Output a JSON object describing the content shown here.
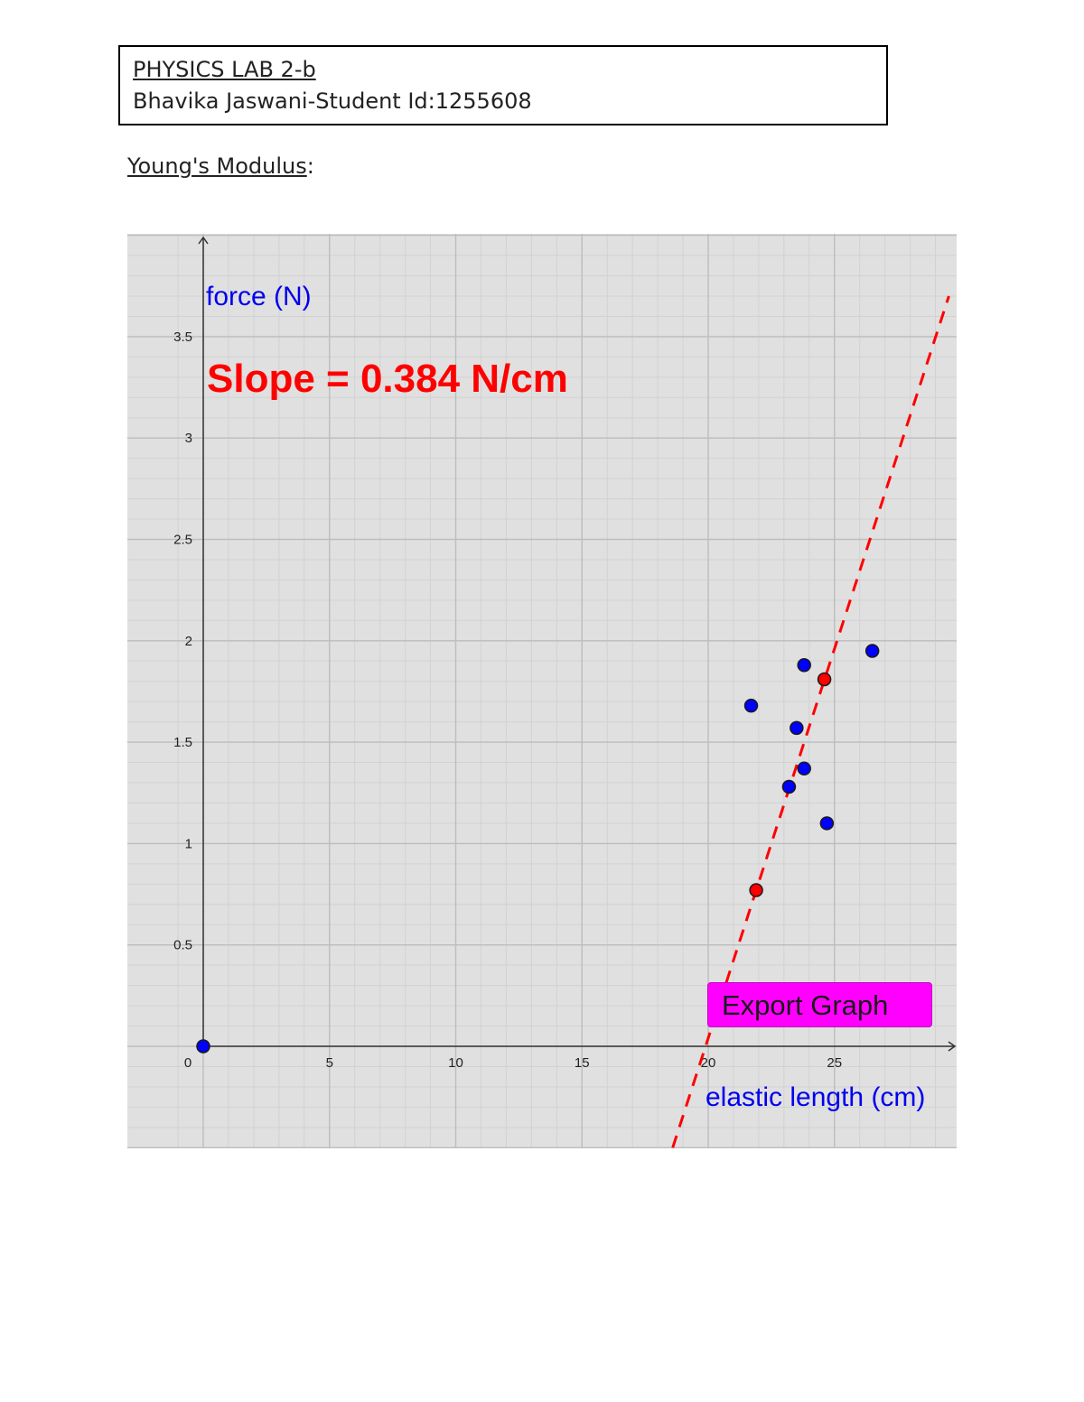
{
  "header": {
    "title": "PHYSICS LAB 2-b",
    "student": "Bhavika Jaswani-Student Id:1255608"
  },
  "section": {
    "heading": "Young's Modulus",
    "heading_suffix": ":"
  },
  "export_button": {
    "label": "Export Graph"
  },
  "colors": {
    "plot_background": "#e0e0e0",
    "data_points": "#0000ff",
    "fit_points": "#ff0000",
    "fit_line": "#ff0000",
    "axis_label": "#0000ee",
    "slope_text": "#ff0000",
    "button": "#ff00ff"
  },
  "chart_data": {
    "type": "scatter",
    "title": "",
    "annotation": "Slope = 0.384 N/cm",
    "xlabel": "elastic length (cm)",
    "ylabel": "force (N)",
    "xlim": [
      -0.2,
      29.5
    ],
    "ylim": [
      -0.5,
      4.0
    ],
    "x_ticks": [
      0,
      5,
      10,
      15,
      20,
      25
    ],
    "x_tick_labels": [
      "0",
      "5",
      "10",
      "15",
      "20",
      "25"
    ],
    "y_ticks": [
      0.5,
      1,
      1.5,
      2,
      2.5,
      3,
      3.5
    ],
    "y_tick_labels": [
      "0.5",
      "1",
      "1.5",
      "2",
      "2.5",
      "3",
      "3.5"
    ],
    "grid": true,
    "series": [
      {
        "points": [
          {
            "x": 0.0,
            "y": 0.0
          },
          {
            "x": 21.7,
            "y": 1.68
          },
          {
            "x": 23.2,
            "y": 1.28
          },
          {
            "x": 23.5,
            "y": 1.57
          },
          {
            "x": 23.8,
            "y": 1.37
          },
          {
            "x": 23.8,
            "y": 1.88
          },
          {
            "x": 24.7,
            "y": 1.1
          },
          {
            "x": 26.5,
            "y": 1.95
          }
        ]
      },
      {
        "points": [
          {
            "x": 21.9,
            "y": 0.77
          },
          {
            "x": 24.6,
            "y": 1.81
          }
        ]
      }
    ],
    "fit_line": {
      "slope": 0.384,
      "intercept": -7.64,
      "style": "dashed"
    }
  }
}
